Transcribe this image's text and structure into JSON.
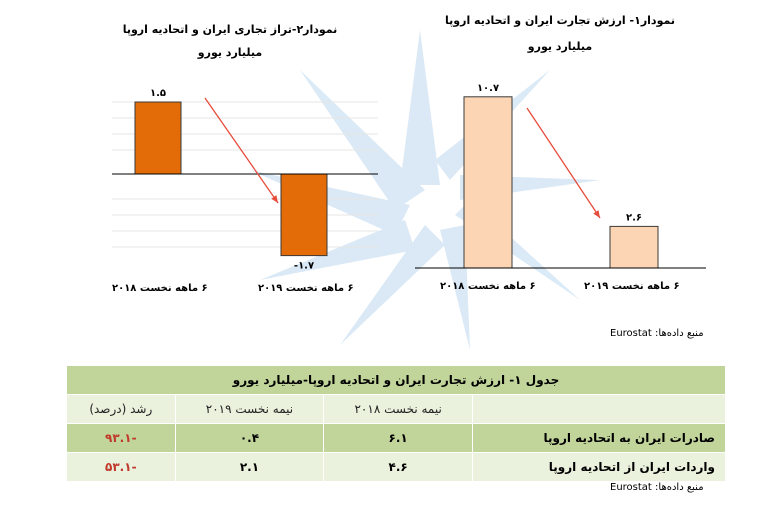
{
  "chart_data": [
    {
      "type": "bar",
      "title": "نمودار۱- ارزش تجارت ایران و اتحادیه اروپا",
      "subtitle": "میلیارد یورو",
      "categories": [
        "۶ ماهه نخست ۲۰۱۸",
        "۶ ماهه نخست ۲۰۱۹"
      ],
      "values": [
        10.7,
        2.6
      ],
      "value_labels": [
        "۱۰.۷",
        "۲.۶"
      ],
      "colors": [
        "#fcd5b4"
      ],
      "ylim": [
        0,
        11
      ]
    },
    {
      "type": "bar",
      "title": "نمودار۲-تراز تجاری ایران و اتحادیه اروپا",
      "subtitle": "میلیارد یورو",
      "categories": [
        "۶ ماهه نخست ۲۰۱۸",
        "۶ ماهه نخست ۲۰۱۹"
      ],
      "values": [
        1.5,
        -1.7
      ],
      "value_labels": [
        "۱.۵",
        "-۱.۷"
      ],
      "colors": [
        "#e36c09"
      ],
      "ylim": [
        -2,
        2
      ]
    }
  ],
  "source_1": "منبع داده‌ها: Eurostat",
  "table": {
    "title": "جدول ۱- ارزش تجارت ایران و اتحادیه اروپا-میلیارد یورو",
    "headers": [
      "",
      "نیمه نخست ۲۰۱۸",
      "نیمه نخست ۲۰۱۹",
      "رشد (درصد)"
    ],
    "rows": [
      {
        "label": "صادرات ایران به اتحادیه اروپا",
        "v2018": "۶.۱",
        "v2019": "۰.۴",
        "growth": "-۹۳.۱"
      },
      {
        "label": "واردات ایران از اتحادیه اروپا",
        "v2018": "۴.۶",
        "v2019": "۲.۱",
        "growth": "-۵۳.۱"
      }
    ]
  },
  "source_2": "منبع داده‌ها: Eurostat",
  "colors": {
    "positive_bar_light": "#fcd5b4",
    "bar_dark": "#e36c09",
    "arrow": "#e74c3c",
    "table_green": "#c1d59a",
    "table_light": "#eaf1dd",
    "negative_text": "#c0392b"
  }
}
